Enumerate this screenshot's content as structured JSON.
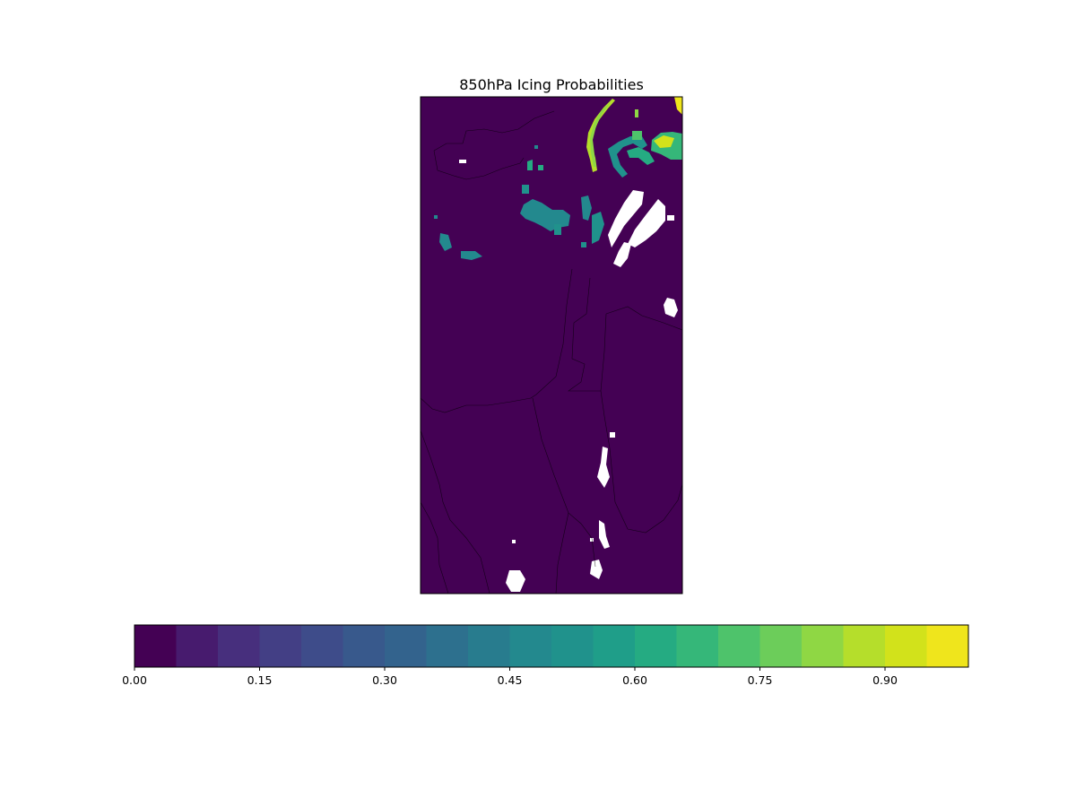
{
  "title": "850hPa Icing Probabilities",
  "map": {
    "background_color": "#440154",
    "border_color": "#000000",
    "missing_color": "#ffffff"
  },
  "colorbar": {
    "min": 0.0,
    "max": 1.0,
    "step": 0.05,
    "ticks": [
      0.0,
      0.15,
      0.3,
      0.45,
      0.6,
      0.75,
      0.9
    ],
    "tick_labels": [
      "0.00",
      "0.15",
      "0.30",
      "0.45",
      "0.60",
      "0.75",
      "0.90"
    ],
    "colors": [
      "#440154",
      "#471b6e",
      "#472f7d",
      "#433f85",
      "#3e4c8a",
      "#38598c",
      "#33638d",
      "#2d708e",
      "#287c8e",
      "#23898e",
      "#20928c",
      "#1f9e89",
      "#25ab82",
      "#35b779",
      "#4ec36b",
      "#6ccd5a",
      "#8fd744",
      "#b5de2b",
      "#d2e21b",
      "#efe51c"
    ]
  },
  "chart_data": {
    "type": "heatmap",
    "title": "850hPa Icing Probabilities",
    "value_range": [
      0.0,
      1.0
    ],
    "colormap": "viridis",
    "levels": 20,
    "dominant_value": 0.0,
    "regions": [
      {
        "name": "northeast-band",
        "value": 0.87
      },
      {
        "name": "northeast-corner",
        "value": 0.97
      },
      {
        "name": "northeast-blob",
        "value": 0.82
      },
      {
        "name": "northeast-spot",
        "value": 0.62
      },
      {
        "name": "central-cluster",
        "value": 0.5
      },
      {
        "name": "west-cluster",
        "value": 0.5
      },
      {
        "name": "small-cells",
        "value": 0.72
      }
    ]
  }
}
